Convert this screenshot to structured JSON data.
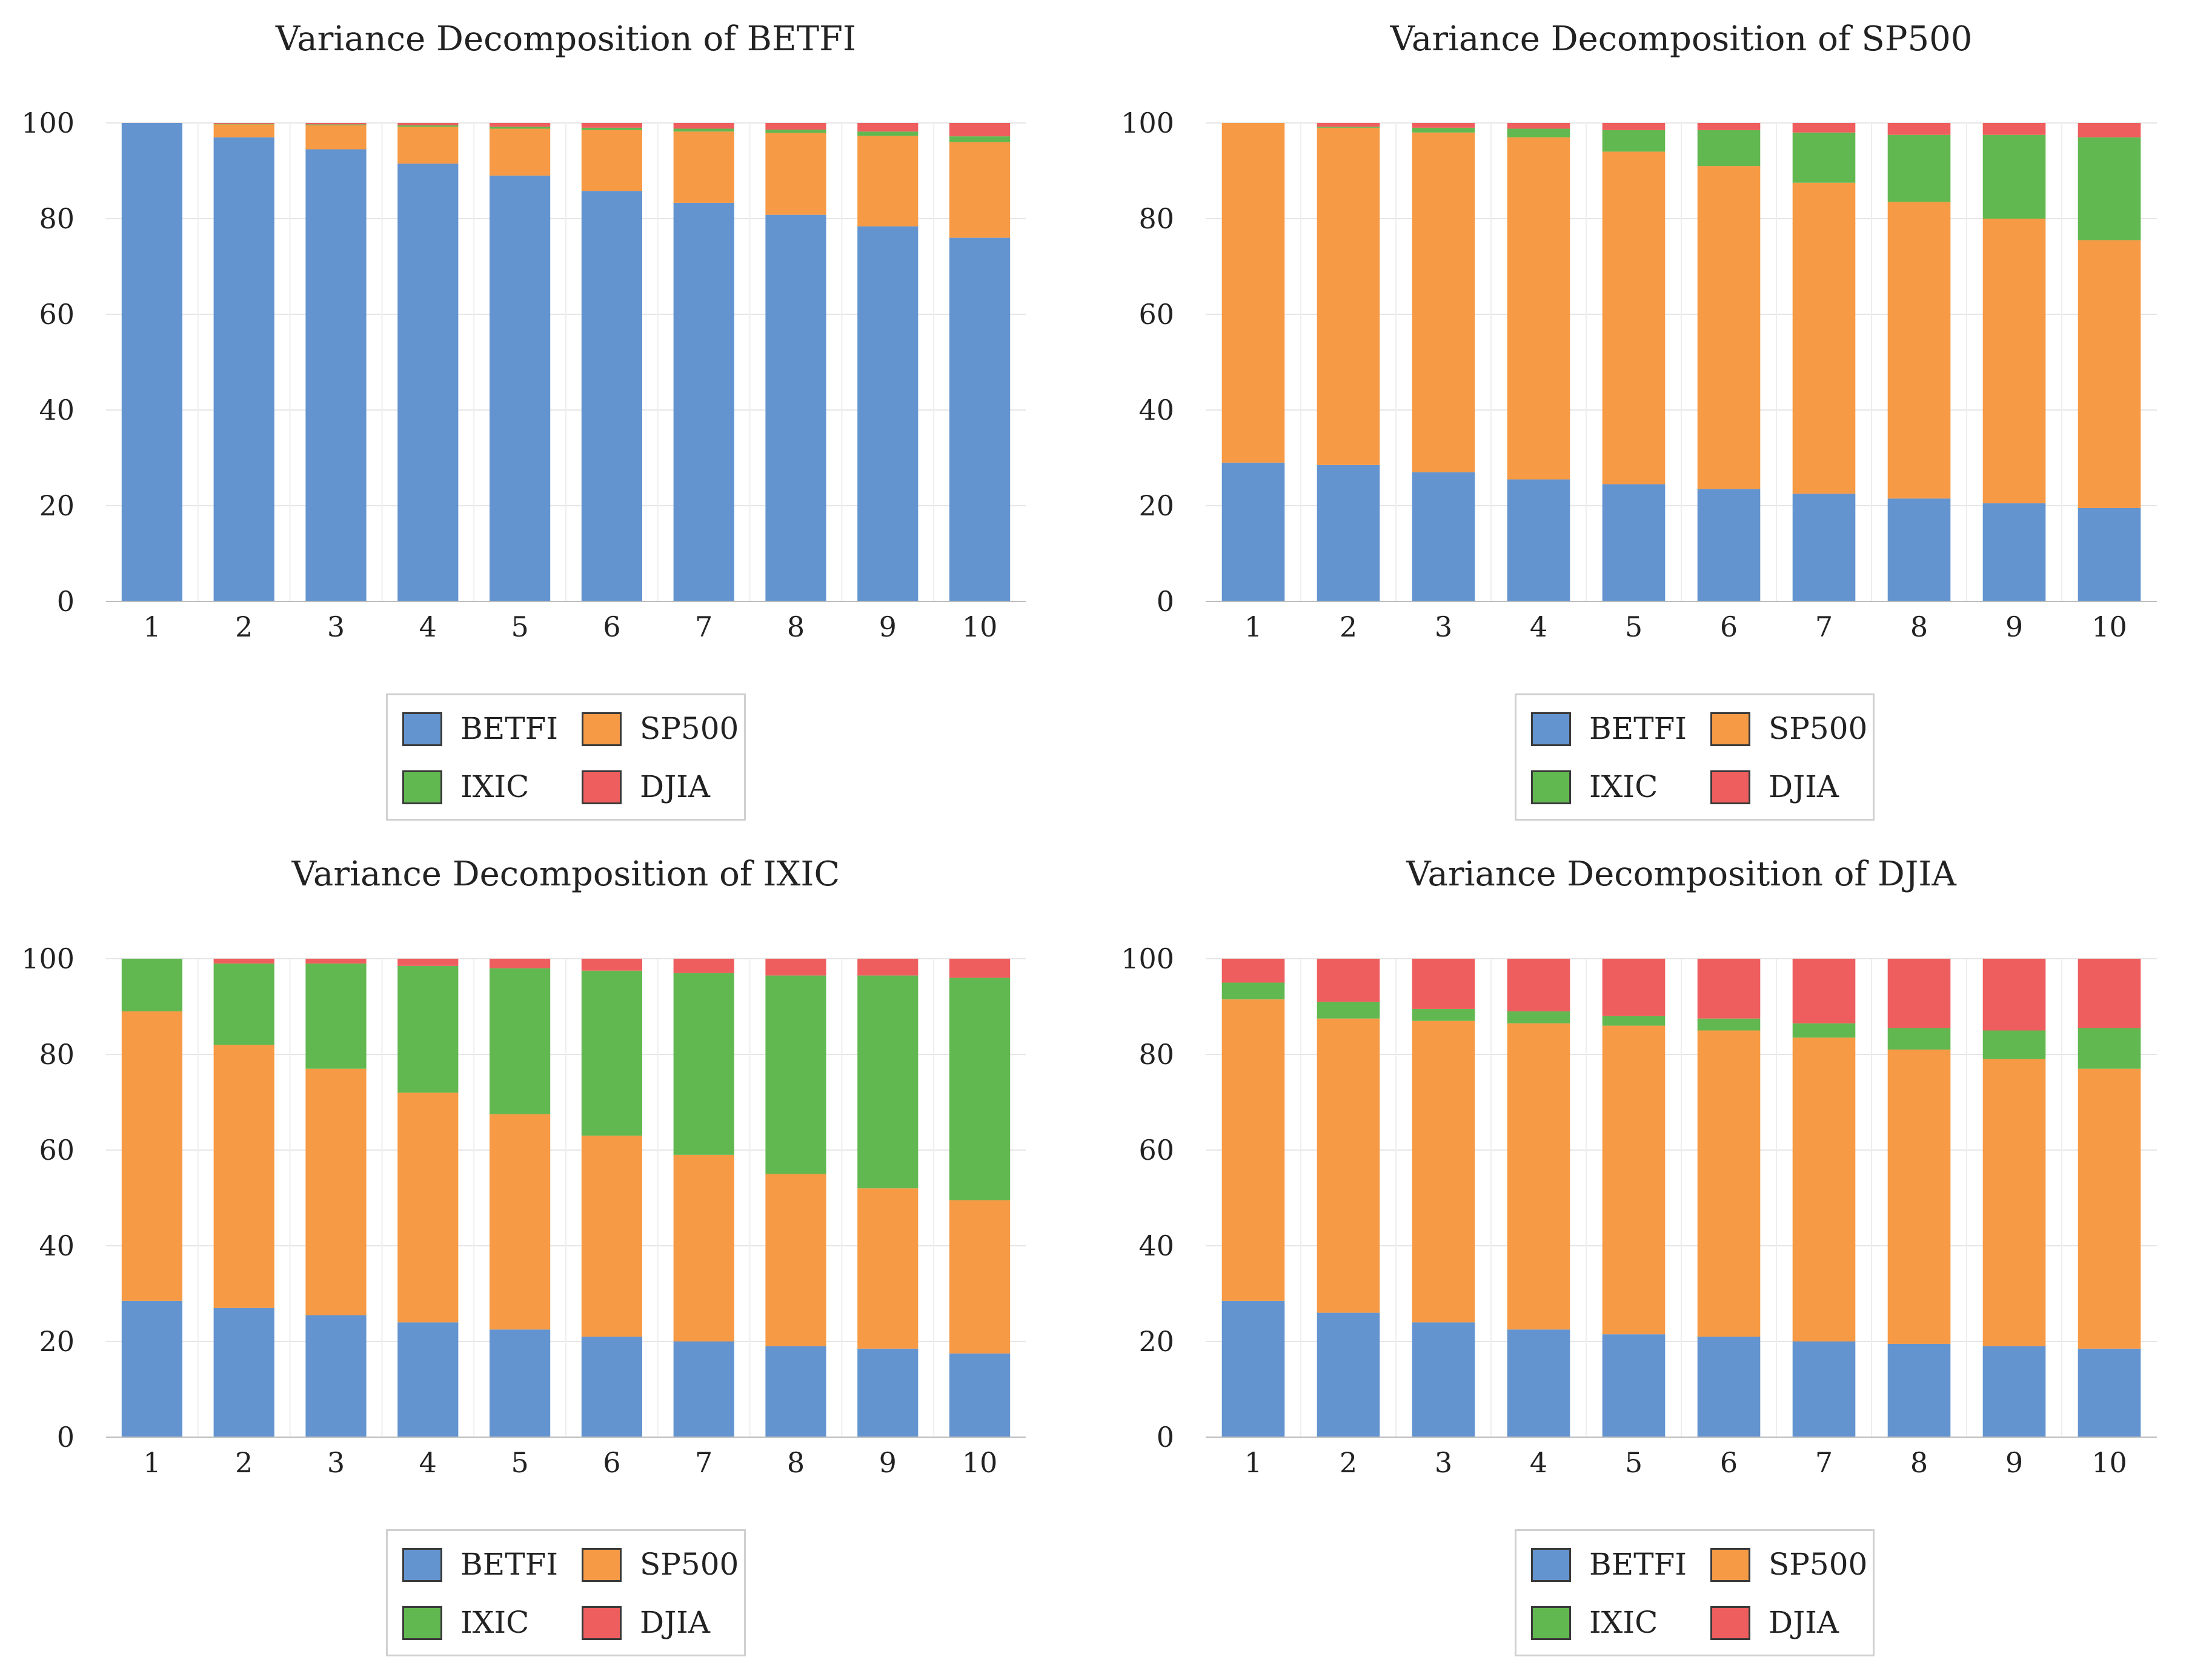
{
  "colors": {
    "BETFI": "#6394cf",
    "SP500": "#f79a45",
    "IXIC": "#62b850",
    "DJIA": "#ef5e5e"
  },
  "legend_entries": [
    "BETFI",
    "SP500",
    "IXIC",
    "DJIA"
  ],
  "chart_data": [
    {
      "type": "bar",
      "stacked": true,
      "title": "Variance Decomposition of BETFI",
      "categories": [
        "1",
        "2",
        "3",
        "4",
        "5",
        "6",
        "7",
        "8",
        "9",
        "10"
      ],
      "ylim": [
        0,
        100
      ],
      "yticks": [
        "0",
        "20",
        "40",
        "60",
        "80",
        "100"
      ],
      "legend": "bottom",
      "series": [
        {
          "name": "BETFI",
          "values": [
            100,
            97.0,
            94.5,
            91.5,
            89.0,
            85.8,
            83.3,
            80.8,
            78.4,
            76.0
          ]
        },
        {
          "name": "SP500",
          "values": [
            0,
            2.7,
            5.0,
            7.7,
            9.8,
            12.7,
            14.9,
            17.1,
            18.9,
            20.0
          ]
        },
        {
          "name": "IXIC",
          "values": [
            0,
            0.1,
            0.2,
            0.3,
            0.4,
            0.5,
            0.6,
            0.7,
            0.9,
            1.2
          ]
        },
        {
          "name": "DJIA",
          "values": [
            0,
            0.2,
            0.3,
            0.5,
            0.8,
            1.0,
            1.2,
            1.4,
            1.8,
            2.8
          ]
        }
      ]
    },
    {
      "type": "bar",
      "stacked": true,
      "title": "Variance Decomposition of SP500",
      "categories": [
        "1",
        "2",
        "3",
        "4",
        "5",
        "6",
        "7",
        "8",
        "9",
        "10"
      ],
      "ylim": [
        0,
        100
      ],
      "yticks": [
        "0",
        "20",
        "40",
        "60",
        "80",
        "100"
      ],
      "legend": "bottom",
      "series": [
        {
          "name": "BETFI",
          "values": [
            29.0,
            28.5,
            27.0,
            25.5,
            24.5,
            23.5,
            22.5,
            21.5,
            20.5,
            19.5
          ]
        },
        {
          "name": "SP500",
          "values": [
            71.0,
            70.5,
            71.0,
            71.5,
            69.5,
            67.5,
            65.0,
            62.0,
            59.5,
            56.0
          ]
        },
        {
          "name": "IXIC",
          "values": [
            0,
            0.2,
            1.0,
            1.8,
            4.5,
            7.5,
            10.5,
            14.0,
            17.5,
            21.5
          ]
        },
        {
          "name": "DJIA",
          "values": [
            0,
            0.8,
            1.0,
            1.2,
            1.5,
            1.5,
            2.0,
            2.5,
            2.5,
            3.0
          ]
        }
      ]
    },
    {
      "type": "bar",
      "stacked": true,
      "title": "Variance Decomposition of IXIC",
      "categories": [
        "1",
        "2",
        "3",
        "4",
        "5",
        "6",
        "7",
        "8",
        "9",
        "10"
      ],
      "ylim": [
        0,
        100
      ],
      "yticks": [
        "0",
        "20",
        "40",
        "60",
        "80",
        "100"
      ],
      "legend": "bottom",
      "series": [
        {
          "name": "BETFI",
          "values": [
            28.5,
            27.0,
            25.5,
            24.0,
            22.5,
            21.0,
            20.0,
            19.0,
            18.5,
            17.5
          ]
        },
        {
          "name": "SP500",
          "values": [
            60.5,
            55.0,
            51.5,
            48.0,
            45.0,
            42.0,
            39.0,
            36.0,
            33.5,
            32.0
          ]
        },
        {
          "name": "IXIC",
          "values": [
            11.0,
            17.0,
            22.0,
            26.5,
            30.5,
            34.5,
            38.0,
            41.5,
            44.5,
            46.5
          ]
        },
        {
          "name": "DJIA",
          "values": [
            0,
            1.0,
            1.0,
            1.5,
            2.0,
            2.5,
            3.0,
            3.5,
            3.5,
            4.0
          ]
        }
      ]
    },
    {
      "type": "bar",
      "stacked": true,
      "title": "Variance Decomposition of DJIA",
      "categories": [
        "1",
        "2",
        "3",
        "4",
        "5",
        "6",
        "7",
        "8",
        "9",
        "10"
      ],
      "ylim": [
        0,
        100
      ],
      "yticks": [
        "0",
        "20",
        "40",
        "60",
        "80",
        "100"
      ],
      "legend": "bottom",
      "series": [
        {
          "name": "BETFI",
          "values": [
            28.5,
            26.0,
            24.0,
            22.5,
            21.5,
            21.0,
            20.0,
            19.5,
            19.0,
            18.5
          ]
        },
        {
          "name": "SP500",
          "values": [
            63.0,
            61.5,
            63.0,
            64.0,
            64.5,
            64.0,
            63.5,
            61.5,
            60.0,
            58.5
          ]
        },
        {
          "name": "IXIC",
          "values": [
            3.5,
            3.5,
            2.5,
            2.5,
            2.0,
            2.5,
            3.0,
            4.5,
            6.0,
            8.5
          ]
        },
        {
          "name": "DJIA",
          "values": [
            5.0,
            9.0,
            10.5,
            11.0,
            12.0,
            12.5,
            13.5,
            14.5,
            15.0,
            14.5
          ]
        }
      ]
    }
  ]
}
